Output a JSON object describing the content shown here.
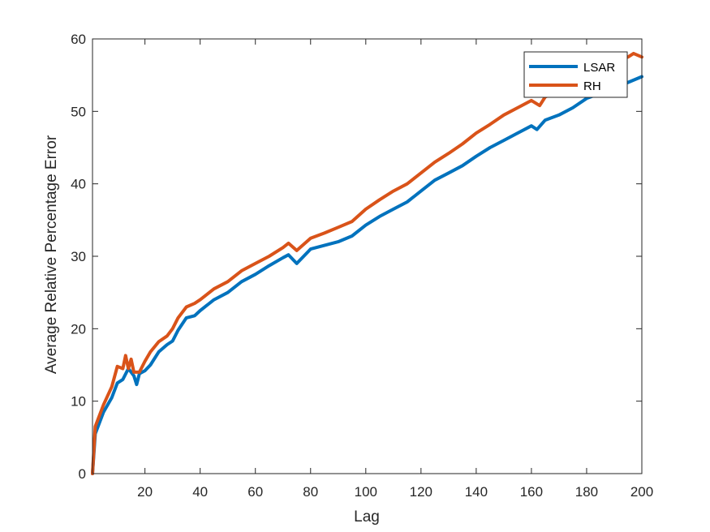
{
  "chart_data": {
    "type": "line",
    "xlabel": "Lag",
    "ylabel": "Average Relative Percentage Error",
    "xlim": [
      1,
      200
    ],
    "ylim": [
      0,
      60
    ],
    "xticks": [
      20,
      40,
      60,
      80,
      100,
      120,
      140,
      160,
      180,
      200
    ],
    "yticks": [
      0,
      10,
      20,
      30,
      40,
      50,
      60
    ],
    "grid": false,
    "legend": "top-right",
    "series": [
      {
        "name": "LSAR",
        "color": "#0072BD",
        "x": [
          1,
          2,
          5,
          8,
          10,
          12,
          14,
          15,
          16,
          17,
          18,
          20,
          22,
          25,
          28,
          30,
          32,
          35,
          38,
          40,
          45,
          50,
          55,
          60,
          65,
          70,
          72,
          75,
          80,
          85,
          90,
          95,
          100,
          105,
          110,
          115,
          120,
          125,
          130,
          135,
          140,
          145,
          150,
          155,
          160,
          162,
          165,
          170,
          175,
          180,
          185,
          190,
          195,
          200
        ],
        "y": [
          0,
          5.5,
          8.5,
          10.5,
          12.5,
          13.0,
          14.5,
          14.0,
          13.5,
          12.3,
          13.8,
          14.2,
          15.0,
          16.8,
          17.8,
          18.3,
          19.8,
          21.5,
          21.8,
          22.5,
          24.0,
          25.0,
          26.5,
          27.5,
          28.7,
          29.8,
          30.2,
          29.0,
          31.0,
          31.5,
          32.0,
          32.8,
          34.3,
          35.5,
          36.5,
          37.5,
          39.0,
          40.5,
          41.5,
          42.5,
          43.8,
          45.0,
          46.0,
          47.0,
          48.0,
          47.5,
          48.8,
          49.5,
          50.5,
          51.8,
          52.5,
          53.2,
          54.0,
          54.8
        ]
      },
      {
        "name": "RH",
        "color": "#D95319",
        "x": [
          1,
          2,
          5,
          8,
          10,
          12,
          13,
          14,
          15,
          16,
          18,
          20,
          22,
          25,
          28,
          30,
          32,
          35,
          38,
          40,
          45,
          50,
          55,
          60,
          65,
          70,
          72,
          75,
          80,
          85,
          90,
          95,
          100,
          105,
          110,
          115,
          120,
          125,
          130,
          135,
          140,
          145,
          150,
          155,
          160,
          163,
          165,
          170,
          175,
          180,
          185,
          190,
          195,
          197,
          200
        ],
        "y": [
          0,
          6.5,
          9.5,
          12.0,
          14.8,
          14.5,
          16.3,
          14.5,
          15.8,
          14.0,
          14.0,
          15.5,
          16.8,
          18.2,
          19.0,
          20.0,
          21.5,
          23.0,
          23.5,
          24.0,
          25.5,
          26.5,
          28.0,
          29.0,
          30.0,
          31.2,
          31.8,
          30.8,
          32.5,
          33.2,
          34.0,
          34.8,
          36.5,
          37.8,
          39.0,
          40.0,
          41.5,
          43.0,
          44.2,
          45.5,
          47.0,
          48.2,
          49.5,
          50.5,
          51.5,
          50.8,
          52.0,
          52.8,
          54.0,
          55.0,
          56.0,
          56.8,
          57.5,
          58.0,
          57.5
        ]
      }
    ]
  }
}
